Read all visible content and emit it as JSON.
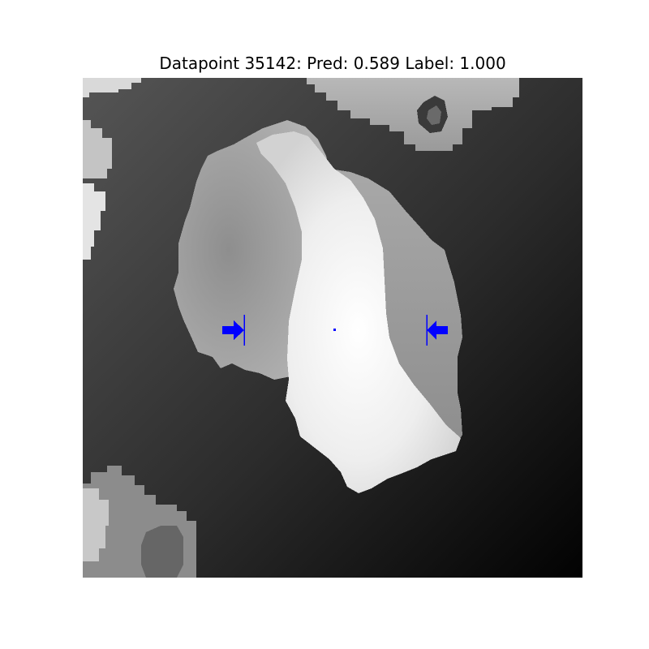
{
  "figure": {
    "title": "Datapoint 35142: Pred: 0.589 Label: 1.000"
  },
  "image": {
    "description_icon": "depth-image",
    "marker_color": "#0000ff"
  }
}
